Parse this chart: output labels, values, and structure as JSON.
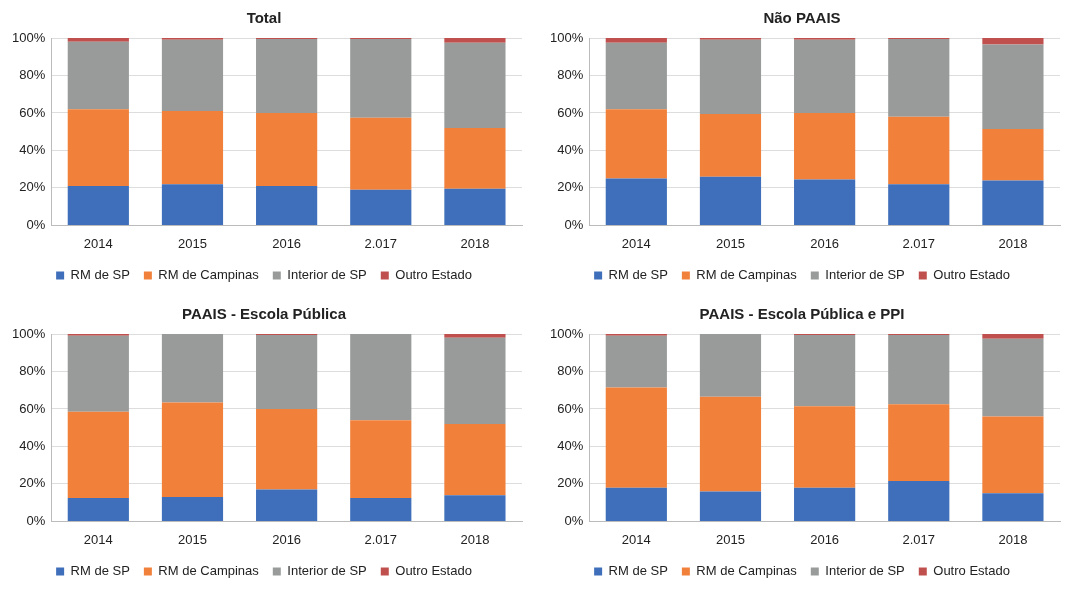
{
  "chart_data": [
    {
      "type": "bar",
      "title": "Total",
      "categories": [
        "2014",
        "2015",
        "2016",
        "2.017",
        "2018"
      ],
      "stacked": true,
      "ylim": [
        0,
        100
      ],
      "yticks": [
        {
          "value": 0,
          "label": "0%"
        },
        {
          "value": 20,
          "label": "20%"
        },
        {
          "value": 40,
          "label": "40%"
        },
        {
          "value": 60,
          "label": "60%"
        },
        {
          "value": 80,
          "label": "80%"
        },
        {
          "value": 100,
          "label": "100%"
        }
      ],
      "grid": "y",
      "legend": "bottom",
      "series": [
        {
          "name": "RM de SP",
          "color": "#3f6fba",
          "values": [
            21,
            22,
            21,
            19,
            19.5
          ]
        },
        {
          "name": "RM de Campinas",
          "color": "#f0803a",
          "values": [
            41,
            39,
            39,
            38.5,
            32.5
          ]
        },
        {
          "name": "Interior de SP",
          "color": "#999b9b",
          "values": [
            36,
            38,
            39.5,
            42,
            45.5
          ]
        },
        {
          "name": "Outro Estado",
          "color": "#c0504d",
          "values": [
            2,
            1,
            0.5,
            0.5,
            2.5
          ]
        }
      ]
    },
    {
      "type": "bar",
      "title": "Não PAAIS",
      "categories": [
        "2014",
        "2015",
        "2016",
        "2.017",
        "2018"
      ],
      "stacked": true,
      "ylim": [
        0,
        100
      ],
      "yticks": [
        {
          "value": 0,
          "label": "0%"
        },
        {
          "value": 20,
          "label": "20%"
        },
        {
          "value": 40,
          "label": "40%"
        },
        {
          "value": 60,
          "label": "60%"
        },
        {
          "value": 80,
          "label": "80%"
        },
        {
          "value": 100,
          "label": "100%"
        }
      ],
      "grid": "y",
      "legend": "bottom",
      "series": [
        {
          "name": "RM de SP",
          "color": "#3f6fba",
          "values": [
            25,
            26,
            24.5,
            22,
            24
          ]
        },
        {
          "name": "RM de Campinas",
          "color": "#f0803a",
          "values": [
            37,
            33.5,
            35.5,
            36,
            27.5
          ]
        },
        {
          "name": "Interior de SP",
          "color": "#999b9b",
          "values": [
            35.5,
            39.5,
            39,
            41.5,
            45
          ]
        },
        {
          "name": "Outro Estado",
          "color": "#c0504d",
          "values": [
            2.5,
            1,
            1,
            0.5,
            3.5
          ]
        }
      ]
    },
    {
      "type": "bar",
      "title": "PAAIS - Escola Pública",
      "categories": [
        "2014",
        "2015",
        "2016",
        "2.017",
        "2018"
      ],
      "stacked": true,
      "ylim": [
        0,
        100
      ],
      "yticks": [
        {
          "value": 0,
          "label": "0%"
        },
        {
          "value": 20,
          "label": "20%"
        },
        {
          "value": 40,
          "label": "40%"
        },
        {
          "value": 60,
          "label": "60%"
        },
        {
          "value": 80,
          "label": "80%"
        },
        {
          "value": 100,
          "label": "100%"
        }
      ],
      "grid": "y",
      "legend": "bottom",
      "series": [
        {
          "name": "RM de SP",
          "color": "#3f6fba",
          "values": [
            12.5,
            13,
            17,
            12.5,
            14
          ]
        },
        {
          "name": "RM de Campinas",
          "color": "#f0803a",
          "values": [
            46,
            50.5,
            43,
            41.5,
            38
          ]
        },
        {
          "name": "Interior de SP",
          "color": "#999b9b",
          "values": [
            40.5,
            36.5,
            39.5,
            46,
            46
          ]
        },
        {
          "name": "Outro Estado",
          "color": "#c0504d",
          "values": [
            1,
            0,
            0.5,
            0,
            2
          ]
        }
      ]
    },
    {
      "type": "bar",
      "title": "PAAIS - Escola Pública e PPI",
      "categories": [
        "2014",
        "2015",
        "2016",
        "2.017",
        "2018"
      ],
      "stacked": true,
      "ylim": [
        0,
        100
      ],
      "yticks": [
        {
          "value": 0,
          "label": "0%"
        },
        {
          "value": 20,
          "label": "20%"
        },
        {
          "value": 40,
          "label": "40%"
        },
        {
          "value": 60,
          "label": "60%"
        },
        {
          "value": 80,
          "label": "80%"
        },
        {
          "value": 100,
          "label": "100%"
        }
      ],
      "grid": "y",
      "legend": "bottom",
      "series": [
        {
          "name": "RM de SP",
          "color": "#3f6fba",
          "values": [
            18,
            16,
            18,
            21.5,
            15
          ]
        },
        {
          "name": "RM de Campinas",
          "color": "#f0803a",
          "values": [
            53.5,
            50.5,
            43.5,
            41,
            41
          ]
        },
        {
          "name": "Interior de SP",
          "color": "#999b9b",
          "values": [
            27.5,
            33.5,
            38,
            37,
            41.5
          ]
        },
        {
          "name": "Outro Estado",
          "color": "#c0504d",
          "values": [
            1,
            0,
            0.5,
            0.5,
            2.5
          ]
        }
      ]
    }
  ]
}
